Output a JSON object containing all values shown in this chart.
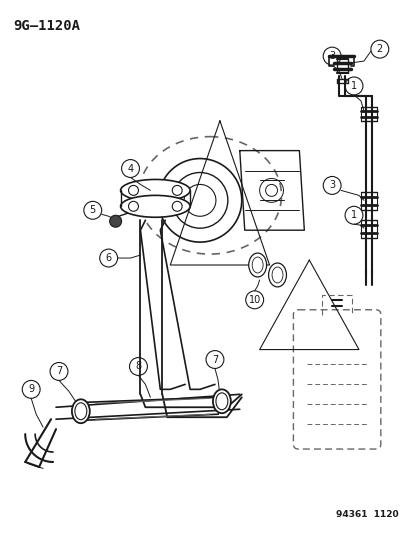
{
  "title": "9G–1120A",
  "footer": "94361  1120",
  "bg_color": "#ffffff",
  "line_color": "#1a1a1a",
  "dashed_color": "#666666",
  "gray_color": "#888888"
}
